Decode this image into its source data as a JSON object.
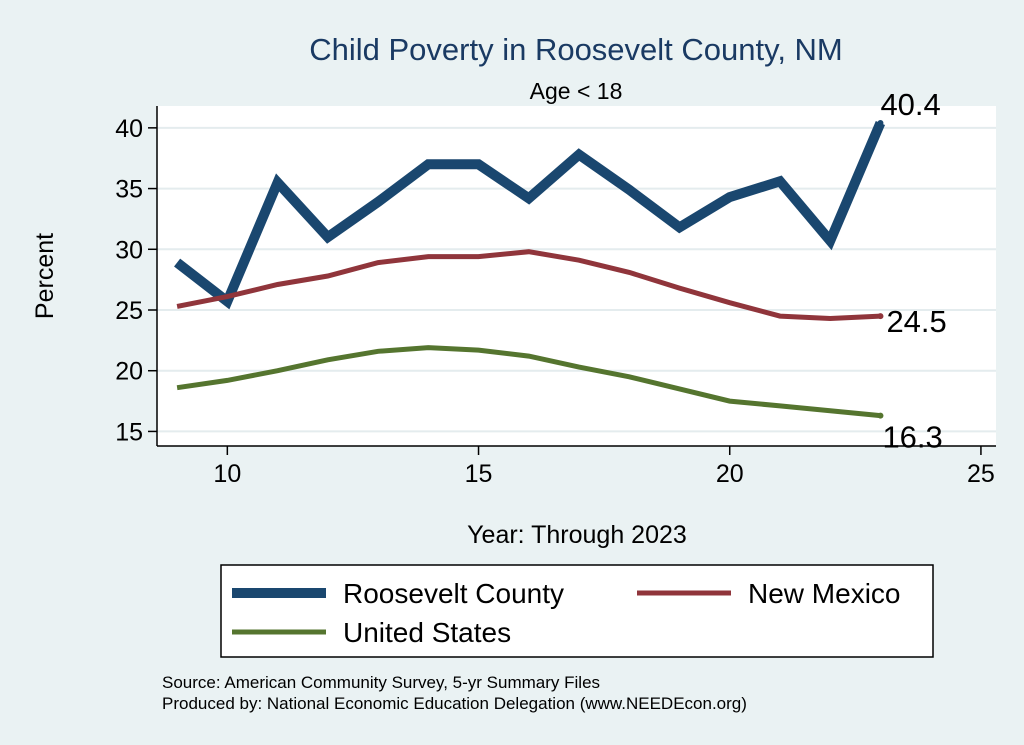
{
  "chart_data": {
    "type": "line",
    "title": "Child Poverty in Roosevelt County, NM",
    "subtitle": "Age < 18",
    "xlabel": "Year: Through 2023",
    "ylabel": "Percent",
    "xlim": [
      8.6,
      25.3
    ],
    "ylim": [
      13.8,
      41.8
    ],
    "xticks": [
      10,
      15,
      20,
      25
    ],
    "yticks": [
      15,
      20,
      25,
      30,
      35,
      40
    ],
    "grid": true,
    "legend_position": "bottom",
    "x": [
      9,
      10,
      11,
      12,
      13,
      14,
      15,
      16,
      17,
      18,
      19,
      20,
      21,
      22,
      23
    ],
    "series": [
      {
        "name": "Roosevelt County",
        "color": "#1a476f",
        "values": [
          28.9,
          25.7,
          35.5,
          31.0,
          33.9,
          37.0,
          37.0,
          34.2,
          37.8,
          34.9,
          31.8,
          34.3,
          35.6,
          30.7,
          40.4
        ],
        "end_label": "40.4"
      },
      {
        "name": "New Mexico",
        "color": "#90353b",
        "values": [
          25.3,
          26.1,
          27.1,
          27.8,
          28.9,
          29.4,
          29.4,
          29.8,
          29.1,
          28.1,
          26.8,
          25.6,
          24.5,
          24.3,
          24.5
        ],
        "end_label": "24.5"
      },
      {
        "name": "United States",
        "color": "#55752f",
        "values": [
          18.6,
          19.2,
          20.0,
          20.9,
          21.6,
          21.9,
          21.7,
          21.2,
          20.3,
          19.5,
          18.5,
          17.5,
          17.1,
          16.7,
          16.3
        ],
        "end_label": "16.3"
      }
    ]
  },
  "notes": [
    "Source: American Community Survey, 5-yr Summary Files",
    "Produced by: National Economic Education Delegation (www.NEEDEcon.org)"
  ]
}
